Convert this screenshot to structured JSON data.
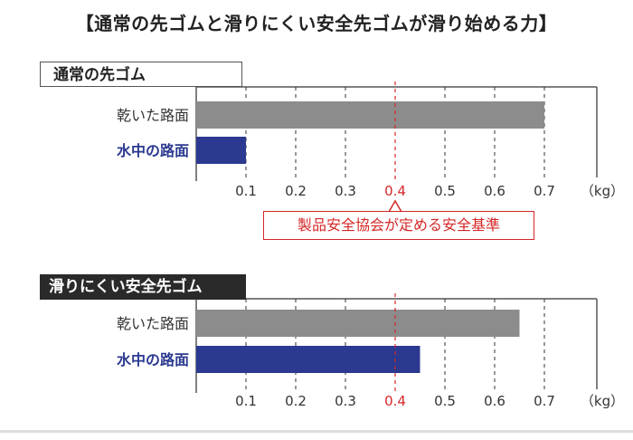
{
  "title": "【通常の先ゴムと滑りにくい安全先ゴムが滑り始める力】",
  "standard_label": "製品安全協会が定める安全基準",
  "colors": {
    "dry": "#8c8c8c",
    "water": "#2b3990",
    "water_label": "#2b3990",
    "standard": "#d42727",
    "dark_tag": "#2a2a2a"
  },
  "chart_data": [
    {
      "type": "bar",
      "orientation": "horizontal",
      "panel_label": "通常の先ゴム",
      "categories": [
        "乾いた路面",
        "水中の路面"
      ],
      "values": [
        0.7,
        0.1
      ],
      "xunit": "（kg）",
      "xticks": [
        0.1,
        0.2,
        0.3,
        0.4,
        0.5,
        0.6,
        0.7
      ],
      "xlim": [
        0,
        0.8
      ],
      "reference_line": 0.4,
      "grid": "vertical dashed"
    },
    {
      "type": "bar",
      "orientation": "horizontal",
      "panel_label": "滑りにくい安全先ゴム",
      "categories": [
        "乾いた路面",
        "水中の路面"
      ],
      "values": [
        0.65,
        0.45
      ],
      "xunit": "（kg）",
      "xticks": [
        0.1,
        0.2,
        0.3,
        0.4,
        0.5,
        0.6,
        0.7
      ],
      "xlim": [
        0,
        0.8
      ],
      "reference_line": 0.4,
      "grid": "vertical dashed"
    }
  ]
}
